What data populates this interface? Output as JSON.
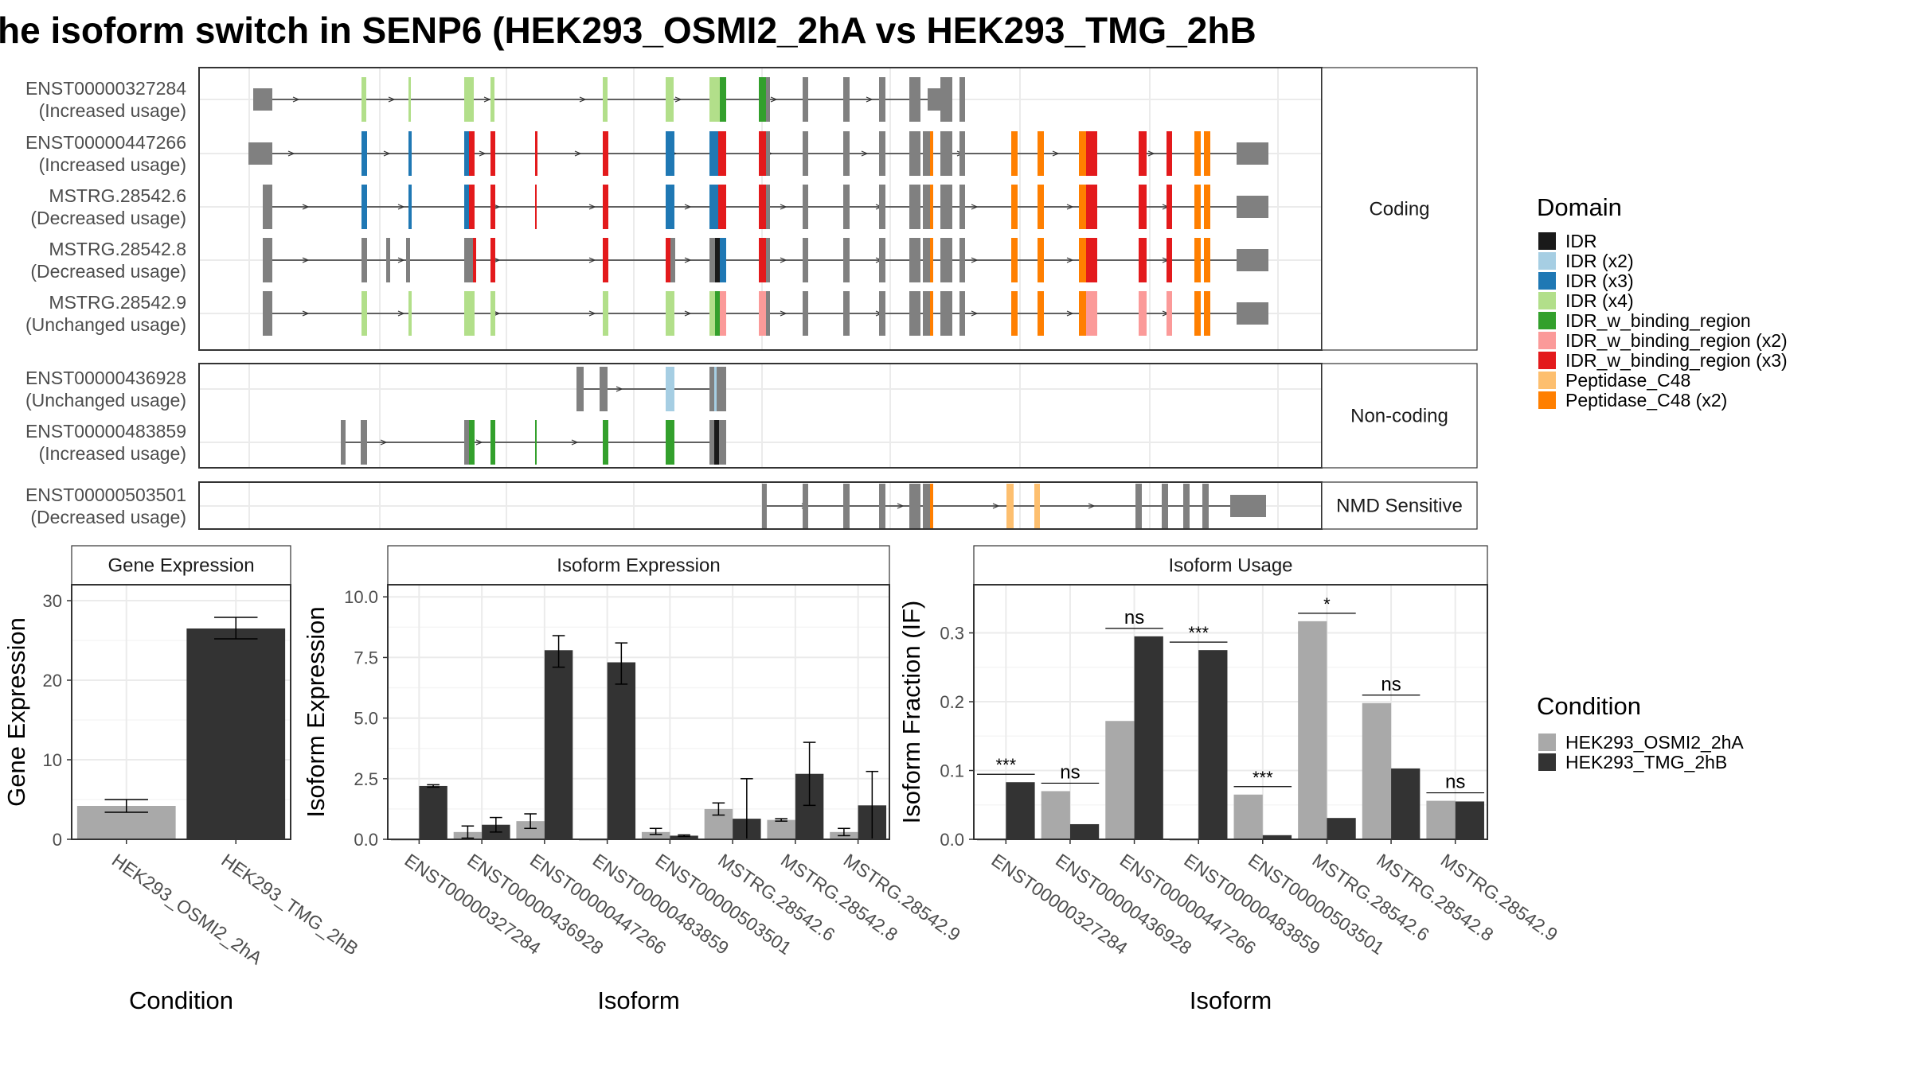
{
  "title": "he isoform switch in SENP6 (HEK293_OSMI2_2hA vs HEK293_TMG_2hB",
  "domain_colors": {
    "IDR": "#1a1a1a",
    "IDR (x2)": "#a6cee3",
    "IDR (x3)": "#1f78b4",
    "IDR (x4)": "#b2df8a",
    "IDR_w_binding_region": "#33a02c",
    "IDR_w_binding_region (x2)": "#fb9a99",
    "IDR_w_binding_region (x3)": "#e31a1c",
    "Peptidase_C48": "#fdbf6f",
    "Peptidase_C48 (x2)": "#ff7f00",
    "exon": "#808080"
  },
  "condition_colors": {
    "HEK293_OSMI2_2hA": "#a9a9a9",
    "HEK293_TMG_2hB": "#333333"
  },
  "domain_legend": {
    "title": "Domain",
    "items": [
      "IDR",
      "IDR (x2)",
      "IDR (x3)",
      "IDR (x4)",
      "IDR_w_binding_region",
      "IDR_w_binding_region (x2)",
      "IDR_w_binding_region (x3)",
      "Peptidase_C48",
      "Peptidase_C48 (x2)"
    ]
  },
  "condition_legend": {
    "title": "Condition",
    "items": [
      "HEK293_OSMI2_2hA",
      "HEK293_TMG_2hB"
    ]
  },
  "structure": {
    "facets": [
      {
        "label": "Coding",
        "isoforms": [
          {
            "id": "ENST00000327284",
            "usage": "(Increased usage)"
          },
          {
            "id": "ENST00000447266",
            "usage": "(Increased usage)"
          },
          {
            "id": "MSTRG.28542.6",
            "usage": "(Decreased usage)"
          },
          {
            "id": "MSTRG.28542.8",
            "usage": "(Decreased usage)"
          },
          {
            "id": "MSTRG.28542.9",
            "usage": "(Unchanged usage)"
          }
        ]
      },
      {
        "label": "Non-coding",
        "isoforms": [
          {
            "id": "ENST00000436928",
            "usage": "(Unchanged usage)"
          },
          {
            "id": "ENST00000483859",
            "usage": "(Increased usage)"
          }
        ]
      },
      {
        "label": "NMD Sensitive",
        "isoforms": [
          {
            "id": "ENST00000503501",
            "usage": "(Decreased usage)"
          }
        ]
      }
    ]
  },
  "chart_data": [
    {
      "type": "bar",
      "title": "Gene Expression",
      "xlabel": "Condition",
      "ylabel": "Gene Expression",
      "categories": [
        "HEK293_OSMI2_2hA",
        "HEK293_TMG_2hB"
      ],
      "values": [
        4.2,
        26.5
      ],
      "errors": [
        [
          3.4,
          5.0
        ],
        [
          25.2,
          27.9
        ]
      ],
      "ylim": [
        0,
        32
      ],
      "yticks": [
        0,
        10,
        20,
        30
      ]
    },
    {
      "type": "bar",
      "title": "Isoform Expression",
      "xlabel": "Isoform",
      "ylabel": "Isoform Expression",
      "categories": [
        "ENST00000327284",
        "ENST00000436928",
        "ENST00000447266",
        "ENST00000483859",
        "ENST00000503501",
        "MSTRG.28542.6",
        "MSTRG.28542.8",
        "MSTRG.28542.9"
      ],
      "series": [
        {
          "name": "HEK293_OSMI2_2hA",
          "values": [
            0.0,
            0.3,
            0.75,
            0.0,
            0.3,
            1.25,
            0.8,
            0.3
          ],
          "errors": [
            null,
            [
              0.05,
              0.55
            ],
            [
              0.45,
              1.05
            ],
            null,
            [
              0.2,
              0.45
            ],
            [
              1.0,
              1.5
            ],
            [
              0.75,
              0.85
            ],
            [
              0.15,
              0.45
            ]
          ]
        },
        {
          "name": "HEK293_TMG_2hB",
          "values": [
            2.2,
            0.6,
            7.8,
            7.3,
            0.15,
            0.85,
            2.7,
            1.4
          ],
          "errors": [
            [
              2.15,
              2.25
            ],
            [
              0.3,
              0.9
            ],
            [
              7.1,
              8.4
            ],
            [
              6.4,
              8.1
            ],
            [
              0.12,
              0.18
            ],
            [
              0.0,
              2.5
            ],
            [
              1.4,
              4.0
            ],
            [
              0.0,
              2.8
            ]
          ]
        }
      ],
      "ylim": [
        0,
        10.5
      ],
      "yticks": [
        "0.0",
        "2.5",
        "5.0",
        "7.5",
        "10.0"
      ]
    },
    {
      "type": "bar",
      "title": "Isoform Usage",
      "xlabel": "Isoform",
      "ylabel": "Isoform Fraction (IF)",
      "categories": [
        "ENST00000327284",
        "ENST00000436928",
        "ENST00000447266",
        "ENST00000483859",
        "ENST00000503501",
        "MSTRG.28542.6",
        "MSTRG.28542.8",
        "MSTRG.28542.9"
      ],
      "series": [
        {
          "name": "HEK293_OSMI2_2hA",
          "values": [
            0.0,
            0.07,
            0.172,
            0.0,
            0.065,
            0.317,
            0.198,
            0.056
          ]
        },
        {
          "name": "HEK293_TMG_2hB",
          "values": [
            0.083,
            0.022,
            0.295,
            0.275,
            0.006,
            0.031,
            0.103,
            0.055
          ]
        }
      ],
      "significance": [
        "***",
        "ns",
        "ns",
        "***",
        "***",
        "*",
        "ns",
        "ns"
      ],
      "ylim": [
        0,
        0.37
      ],
      "yticks": [
        "0.0",
        "0.1",
        "0.2",
        "0.3"
      ]
    }
  ]
}
